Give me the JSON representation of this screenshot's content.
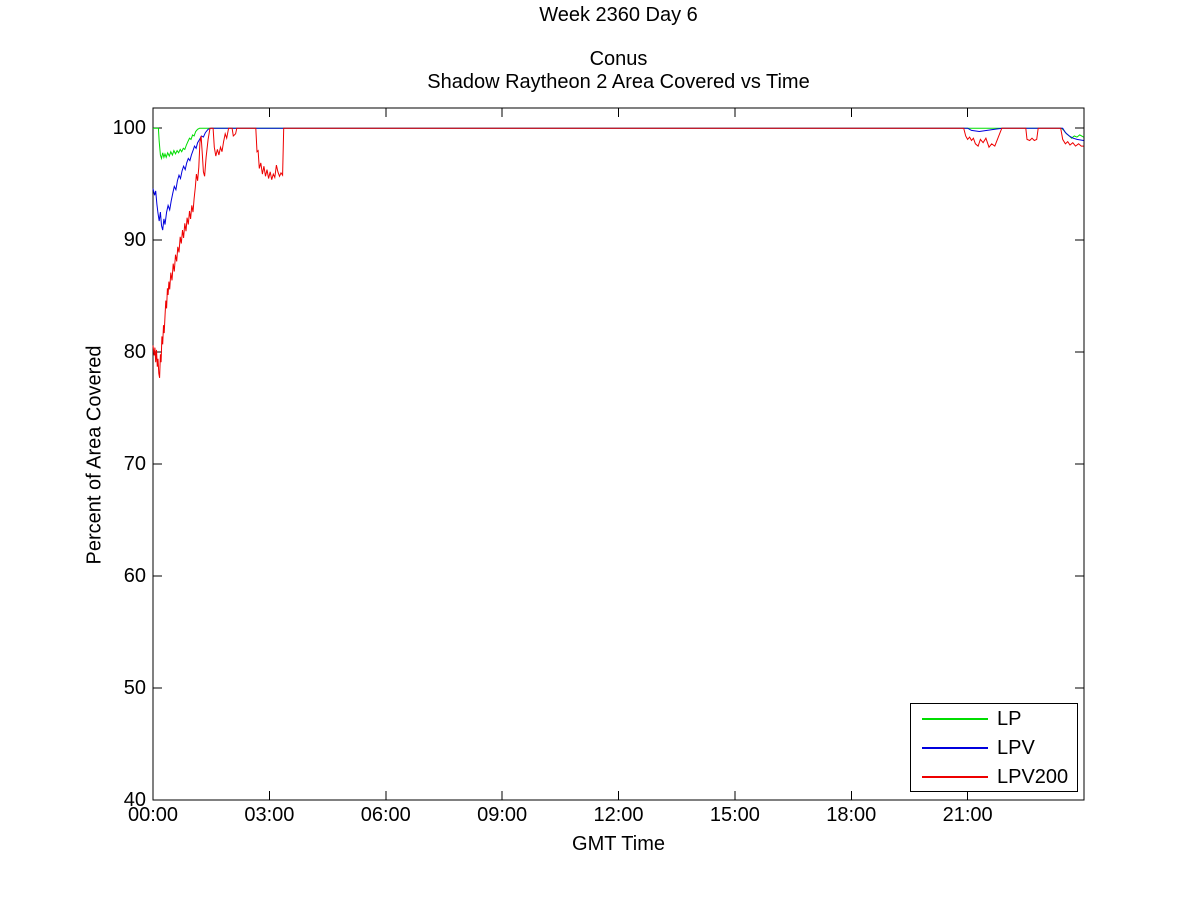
{
  "figure_title": "Week 2360 Day 6",
  "chart_data": {
    "type": "line",
    "suptitle": "Week 2360 Day 6",
    "title_lines": [
      "Conus",
      "Shadow Raytheon 2 Area Covered vs Time"
    ],
    "xlabel": "GMT Time",
    "ylabel": "Percent of Area Covered",
    "xlim": [
      0,
      24
    ],
    "ylim": [
      40,
      101.8
    ],
    "grid": false,
    "background": "#ffffff",
    "axis_color": "#000000",
    "legend_position": "bottom-right",
    "x_ticks": [
      {
        "value": 0,
        "label": "00:00"
      },
      {
        "value": 3,
        "label": "03:00"
      },
      {
        "value": 6,
        "label": "06:00"
      },
      {
        "value": 9,
        "label": "09:00"
      },
      {
        "value": 12,
        "label": "12:00"
      },
      {
        "value": 15,
        "label": "15:00"
      },
      {
        "value": 18,
        "label": "18:00"
      },
      {
        "value": 21,
        "label": "21:00"
      }
    ],
    "y_ticks": [
      {
        "value": 40,
        "label": "40"
      },
      {
        "value": 50,
        "label": "50"
      },
      {
        "value": 60,
        "label": "60"
      },
      {
        "value": 70,
        "label": "70"
      },
      {
        "value": 80,
        "label": "80"
      },
      {
        "value": 90,
        "label": "90"
      },
      {
        "value": 100,
        "label": "100"
      }
    ],
    "series": [
      {
        "name": "LP",
        "color": "#00dd00",
        "points": [
          [
            0,
            100
          ],
          [
            0.14,
            100
          ],
          [
            0.16,
            98.8
          ],
          [
            0.19,
            97.6
          ],
          [
            0.22,
            97.3
          ],
          [
            0.25,
            97.8
          ],
          [
            0.28,
            97.4
          ],
          [
            0.31,
            97.7
          ],
          [
            0.34,
            97.4
          ],
          [
            0.38,
            97.8
          ],
          [
            0.42,
            97.5
          ],
          [
            0.46,
            97.9
          ],
          [
            0.5,
            97.6
          ],
          [
            0.54,
            98.0
          ],
          [
            0.58,
            97.7
          ],
          [
            0.62,
            98.0
          ],
          [
            0.66,
            97.8
          ],
          [
            0.7,
            98.1
          ],
          [
            0.74,
            97.9
          ],
          [
            0.78,
            98.2
          ],
          [
            0.82,
            98.1
          ],
          [
            0.86,
            98.5
          ],
          [
            0.9,
            98.8
          ],
          [
            0.94,
            99.1
          ],
          [
            0.98,
            99.0
          ],
          [
            1.02,
            99.4
          ],
          [
            1.06,
            99.3
          ],
          [
            1.1,
            99.7
          ],
          [
            1.15,
            99.9
          ],
          [
            1.2,
            100
          ],
          [
            23.42,
            100
          ],
          [
            23.48,
            99.8
          ],
          [
            23.55,
            99.5
          ],
          [
            23.62,
            99.3
          ],
          [
            23.68,
            99.1
          ],
          [
            23.75,
            99.3
          ],
          [
            23.82,
            99.2
          ],
          [
            23.89,
            99.4
          ],
          [
            23.99,
            99.2
          ]
        ]
      },
      {
        "name": "LPV",
        "color": "#0000dd",
        "points": [
          [
            0,
            94.6
          ],
          [
            0.04,
            94.0
          ],
          [
            0.07,
            94.4
          ],
          [
            0.1,
            93.2
          ],
          [
            0.13,
            92.4
          ],
          [
            0.16,
            91.7
          ],
          [
            0.19,
            92.5
          ],
          [
            0.22,
            91.3
          ],
          [
            0.25,
            90.9
          ],
          [
            0.28,
            91.9
          ],
          [
            0.31,
            91.4
          ],
          [
            0.35,
            92.5
          ],
          [
            0.39,
            93.1
          ],
          [
            0.43,
            92.7
          ],
          [
            0.47,
            93.5
          ],
          [
            0.51,
            94.2
          ],
          [
            0.55,
            94.8
          ],
          [
            0.59,
            94.5
          ],
          [
            0.63,
            95.3
          ],
          [
            0.67,
            95.8
          ],
          [
            0.71,
            95.5
          ],
          [
            0.75,
            96.2
          ],
          [
            0.79,
            96.6
          ],
          [
            0.83,
            96.3
          ],
          [
            0.87,
            96.9
          ],
          [
            0.91,
            97.3
          ],
          [
            0.95,
            97.1
          ],
          [
            0.99,
            97.6
          ],
          [
            1.03,
            98.0
          ],
          [
            1.07,
            98.4
          ],
          [
            1.11,
            98.2
          ],
          [
            1.15,
            98.7
          ],
          [
            1.2,
            99.0
          ],
          [
            1.25,
            99.3
          ],
          [
            1.3,
            99.2
          ],
          [
            1.35,
            99.6
          ],
          [
            1.42,
            99.9
          ],
          [
            1.5,
            100
          ],
          [
            21.0,
            100
          ],
          [
            21.1,
            99.8
          ],
          [
            21.3,
            99.7
          ],
          [
            21.5,
            99.8
          ],
          [
            21.7,
            99.9
          ],
          [
            21.9,
            100
          ],
          [
            23.45,
            100
          ],
          [
            23.52,
            99.6
          ],
          [
            23.62,
            99.3
          ],
          [
            23.72,
            99.1
          ],
          [
            23.82,
            99.0
          ],
          [
            23.99,
            98.9
          ]
        ]
      },
      {
        "name": "LPV200",
        "color": "#ee0000",
        "points": [
          [
            0,
            80.6
          ],
          [
            0.03,
            79.7
          ],
          [
            0.05,
            80.4
          ],
          [
            0.07,
            79.1
          ],
          [
            0.09,
            80.2
          ],
          [
            0.11,
            78.7
          ],
          [
            0.13,
            79.4
          ],
          [
            0.15,
            78.1
          ],
          [
            0.17,
            77.7
          ],
          [
            0.19,
            79.8
          ],
          [
            0.21,
            79.1
          ],
          [
            0.23,
            81.4
          ],
          [
            0.25,
            80.7
          ],
          [
            0.27,
            82.4
          ],
          [
            0.29,
            81.7
          ],
          [
            0.31,
            83.2
          ],
          [
            0.33,
            84.6
          ],
          [
            0.35,
            83.9
          ],
          [
            0.37,
            85.7
          ],
          [
            0.39,
            85.1
          ],
          [
            0.41,
            86.3
          ],
          [
            0.43,
            85.6
          ],
          [
            0.46,
            87.1
          ],
          [
            0.49,
            86.4
          ],
          [
            0.52,
            87.9
          ],
          [
            0.55,
            87.2
          ],
          [
            0.58,
            88.7
          ],
          [
            0.61,
            88.1
          ],
          [
            0.64,
            89.4
          ],
          [
            0.67,
            88.9
          ],
          [
            0.7,
            90.3
          ],
          [
            0.73,
            89.7
          ],
          [
            0.76,
            90.9
          ],
          [
            0.79,
            90.2
          ],
          [
            0.82,
            91.5
          ],
          [
            0.85,
            90.8
          ],
          [
            0.88,
            92.0
          ],
          [
            0.91,
            91.4
          ],
          [
            0.94,
            92.6
          ],
          [
            0.97,
            91.9
          ],
          [
            1.0,
            93.1
          ],
          [
            1.03,
            92.5
          ],
          [
            1.06,
            93.7
          ],
          [
            1.09,
            94.7
          ],
          [
            1.12,
            95.9
          ],
          [
            1.15,
            95.3
          ],
          [
            1.18,
            96.5
          ],
          [
            1.21,
            98.7
          ],
          [
            1.24,
            99.3
          ],
          [
            1.27,
            97.7
          ],
          [
            1.3,
            96.1
          ],
          [
            1.33,
            95.7
          ],
          [
            1.37,
            97.4
          ],
          [
            1.42,
            99.0
          ],
          [
            1.47,
            100
          ],
          [
            1.55,
            100
          ],
          [
            1.58,
            98.3
          ],
          [
            1.62,
            97.5
          ],
          [
            1.66,
            98.1
          ],
          [
            1.7,
            97.6
          ],
          [
            1.74,
            98.3
          ],
          [
            1.78,
            97.9
          ],
          [
            1.82,
            98.8
          ],
          [
            1.86,
            99.5
          ],
          [
            1.9,
            99.1
          ],
          [
            1.95,
            100
          ],
          [
            2.04,
            100
          ],
          [
            2.07,
            99.3
          ],
          [
            2.13,
            99.5
          ],
          [
            2.16,
            100
          ],
          [
            2.65,
            100
          ],
          [
            2.68,
            97.9
          ],
          [
            2.71,
            98.0
          ],
          [
            2.74,
            96.4
          ],
          [
            2.78,
            96.9
          ],
          [
            2.82,
            95.9
          ],
          [
            2.86,
            96.6
          ],
          [
            2.9,
            95.7
          ],
          [
            2.94,
            96.3
          ],
          [
            2.98,
            95.5
          ],
          [
            3.02,
            96.1
          ],
          [
            3.06,
            95.4
          ],
          [
            3.1,
            95.9
          ],
          [
            3.14,
            95.6
          ],
          [
            3.18,
            96.7
          ],
          [
            3.22,
            96.1
          ],
          [
            3.26,
            95.7
          ],
          [
            3.3,
            96.0
          ],
          [
            3.34,
            95.8
          ],
          [
            3.37,
            100
          ],
          [
            20.9,
            100
          ],
          [
            20.95,
            99.3
          ],
          [
            21.0,
            99.0
          ],
          [
            21.05,
            99.2
          ],
          [
            21.1,
            98.9
          ],
          [
            21.15,
            99.1
          ],
          [
            21.2,
            98.6
          ],
          [
            21.27,
            98.4
          ],
          [
            21.33,
            99.0
          ],
          [
            21.4,
            98.7
          ],
          [
            21.47,
            99.1
          ],
          [
            21.55,
            98.3
          ],
          [
            21.62,
            98.6
          ],
          [
            21.7,
            98.4
          ],
          [
            21.78,
            99.1
          ],
          [
            21.88,
            100
          ],
          [
            22.5,
            100
          ],
          [
            22.53,
            99.0
          ],
          [
            22.6,
            98.9
          ],
          [
            22.66,
            99.1
          ],
          [
            22.72,
            98.9
          ],
          [
            22.78,
            99.0
          ],
          [
            22.82,
            100
          ],
          [
            23.4,
            100
          ],
          [
            23.45,
            99.0
          ],
          [
            23.52,
            98.6
          ],
          [
            23.58,
            98.8
          ],
          [
            23.64,
            98.5
          ],
          [
            23.71,
            98.7
          ],
          [
            23.78,
            98.4
          ],
          [
            23.86,
            98.6
          ],
          [
            23.93,
            98.4
          ],
          [
            23.99,
            98.4
          ]
        ]
      }
    ]
  }
}
